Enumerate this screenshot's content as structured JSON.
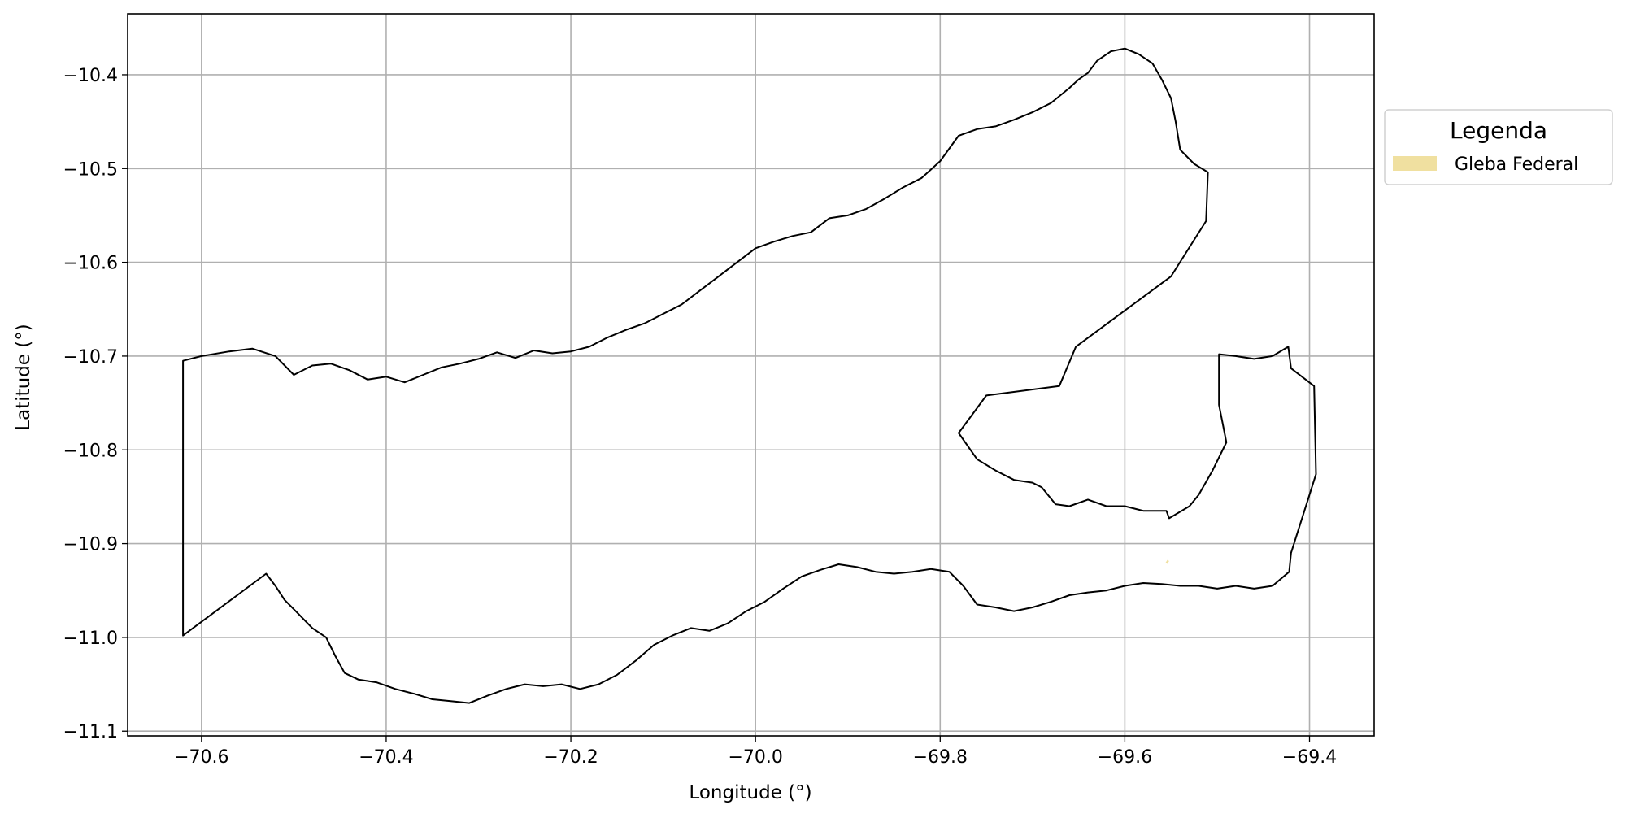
{
  "chart_data": {
    "type": "map",
    "xlabel": "Longitude (°)",
    "ylabel": "Latitude (°)",
    "xlim": [
      -70.68,
      -69.33
    ],
    "ylim": [
      -11.105,
      -10.335
    ],
    "xticks": [
      -70.6,
      -70.4,
      -70.2,
      -70.0,
      -69.8,
      -69.6,
      -69.4
    ],
    "xtick_labels": [
      "−70.6",
      "−70.4",
      "−70.2",
      "−70.0",
      "−69.8",
      "−69.6",
      "−69.4"
    ],
    "yticks": [
      -10.4,
      -10.5,
      -10.6,
      -10.7,
      -10.8,
      -10.9,
      -11.0,
      -11.1
    ],
    "ytick_labels": [
      "−10.4",
      "−10.5",
      "−10.6",
      "−10.7",
      "−10.8",
      "−10.9",
      "−11.0",
      "−11.1"
    ],
    "grid": true,
    "legend": {
      "title": "Legenda",
      "placement": "outside-right-top",
      "entries": [
        {
          "label": "Gleba Federal",
          "color": "#f0e0a0"
        }
      ]
    },
    "outline_color": "#000000",
    "main_outline": [
      [
        -70.62,
        -10.705
      ],
      [
        -70.6,
        -10.7
      ],
      [
        -70.57,
        -10.695
      ],
      [
        -70.545,
        -10.692
      ],
      [
        -70.52,
        -10.7
      ],
      [
        -70.5,
        -10.72
      ],
      [
        -70.48,
        -10.71
      ],
      [
        -70.46,
        -10.708
      ],
      [
        -70.44,
        -10.715
      ],
      [
        -70.42,
        -10.725
      ],
      [
        -70.4,
        -10.722
      ],
      [
        -70.38,
        -10.728
      ],
      [
        -70.36,
        -10.72
      ],
      [
        -70.34,
        -10.712
      ],
      [
        -70.32,
        -10.708
      ],
      [
        -70.3,
        -10.703
      ],
      [
        -70.28,
        -10.696
      ],
      [
        -70.26,
        -10.702
      ],
      [
        -70.24,
        -10.694
      ],
      [
        -70.22,
        -10.697
      ],
      [
        -70.2,
        -10.695
      ],
      [
        -70.18,
        -10.69
      ],
      [
        -70.16,
        -10.68
      ],
      [
        -70.14,
        -10.672
      ],
      [
        -70.12,
        -10.665
      ],
      [
        -70.1,
        -10.655
      ],
      [
        -70.08,
        -10.645
      ],
      [
        -70.06,
        -10.63
      ],
      [
        -70.04,
        -10.615
      ],
      [
        -70.02,
        -10.6
      ],
      [
        -70.0,
        -10.585
      ],
      [
        -69.98,
        -10.578
      ],
      [
        -69.96,
        -10.572
      ],
      [
        -69.94,
        -10.568
      ],
      [
        -69.92,
        -10.553
      ],
      [
        -69.9,
        -10.55
      ],
      [
        -69.88,
        -10.543
      ],
      [
        -69.86,
        -10.532
      ],
      [
        -69.84,
        -10.52
      ],
      [
        -69.82,
        -10.51
      ],
      [
        -69.8,
        -10.492
      ],
      [
        -69.78,
        -10.465
      ],
      [
        -69.76,
        -10.458
      ],
      [
        -69.74,
        -10.455
      ],
      [
        -69.72,
        -10.448
      ],
      [
        -69.7,
        -10.44
      ],
      [
        -69.68,
        -10.43
      ],
      [
        -69.66,
        -10.414
      ],
      [
        -69.65,
        -10.405
      ],
      [
        -69.64,
        -10.398
      ],
      [
        -69.63,
        -10.385
      ],
      [
        -69.615,
        -10.375
      ],
      [
        -69.6,
        -10.372
      ],
      [
        -69.585,
        -10.378
      ],
      [
        -69.57,
        -10.388
      ],
      [
        -69.56,
        -10.405
      ],
      [
        -69.55,
        -10.425
      ],
      [
        -69.545,
        -10.45
      ],
      [
        -69.54,
        -10.48
      ],
      [
        -69.525,
        -10.495
      ],
      [
        -69.51,
        -10.504
      ],
      [
        -69.512,
        -10.556
      ],
      [
        -69.55,
        -10.615
      ],
      [
        -69.653,
        -10.69
      ],
      [
        -69.671,
        -10.732
      ],
      [
        -69.75,
        -10.742
      ],
      [
        -69.78,
        -10.782
      ],
      [
        -69.76,
        -10.81
      ],
      [
        -69.74,
        -10.822
      ],
      [
        -69.72,
        -10.832
      ],
      [
        -69.7,
        -10.835
      ],
      [
        -69.69,
        -10.84
      ],
      [
        -69.675,
        -10.858
      ],
      [
        -69.66,
        -10.86
      ],
      [
        -69.64,
        -10.853
      ],
      [
        -69.62,
        -10.86
      ],
      [
        -69.6,
        -10.86
      ],
      [
        -69.58,
        -10.865
      ],
      [
        -69.555,
        -10.865
      ],
      [
        -69.552,
        -10.873
      ],
      [
        -69.53,
        -10.86
      ],
      [
        -69.52,
        -10.848
      ],
      [
        -69.505,
        -10.822
      ],
      [
        -69.49,
        -10.792
      ],
      [
        -69.498,
        -10.752
      ],
      [
        -69.498,
        -10.698
      ],
      [
        -69.48,
        -10.7
      ],
      [
        -69.46,
        -10.703
      ],
      [
        -69.44,
        -10.7
      ],
      [
        -69.423,
        -10.69
      ],
      [
        -69.42,
        -10.713
      ],
      [
        -69.395,
        -10.732
      ],
      [
        -69.393,
        -10.826
      ],
      [
        -69.42,
        -10.91
      ],
      [
        -69.422,
        -10.93
      ],
      [
        -69.44,
        -10.945
      ],
      [
        -69.46,
        -10.948
      ],
      [
        -69.48,
        -10.945
      ],
      [
        -69.5,
        -10.948
      ],
      [
        -69.52,
        -10.945
      ],
      [
        -69.54,
        -10.945
      ],
      [
        -69.56,
        -10.943
      ],
      [
        -69.58,
        -10.942
      ],
      [
        -69.6,
        -10.945
      ],
      [
        -69.62,
        -10.95
      ],
      [
        -69.64,
        -10.952
      ],
      [
        -69.66,
        -10.955
      ],
      [
        -69.68,
        -10.962
      ],
      [
        -69.7,
        -10.968
      ],
      [
        -69.72,
        -10.972
      ],
      [
        -69.74,
        -10.968
      ],
      [
        -69.76,
        -10.965
      ],
      [
        -69.775,
        -10.945
      ],
      [
        -69.79,
        -10.93
      ],
      [
        -69.81,
        -10.927
      ],
      [
        -69.83,
        -10.93
      ],
      [
        -69.85,
        -10.932
      ],
      [
        -69.87,
        -10.93
      ],
      [
        -69.89,
        -10.925
      ],
      [
        -69.91,
        -10.922
      ],
      [
        -69.93,
        -10.928
      ],
      [
        -69.95,
        -10.935
      ],
      [
        -69.97,
        -10.948
      ],
      [
        -69.99,
        -10.962
      ],
      [
        -70.01,
        -10.972
      ],
      [
        -70.03,
        -10.985
      ],
      [
        -70.05,
        -10.993
      ],
      [
        -70.07,
        -10.99
      ],
      [
        -70.09,
        -10.998
      ],
      [
        -70.11,
        -11.008
      ],
      [
        -70.13,
        -11.025
      ],
      [
        -70.15,
        -11.04
      ],
      [
        -70.17,
        -11.05
      ],
      [
        -70.19,
        -11.055
      ],
      [
        -70.21,
        -11.05
      ],
      [
        -70.23,
        -11.052
      ],
      [
        -70.25,
        -11.05
      ],
      [
        -70.27,
        -11.055
      ],
      [
        -70.29,
        -11.062
      ],
      [
        -70.31,
        -11.07
      ],
      [
        -70.33,
        -11.068
      ],
      [
        -70.35,
        -11.066
      ],
      [
        -70.37,
        -11.06
      ],
      [
        -70.39,
        -11.055
      ],
      [
        -70.41,
        -11.048
      ],
      [
        -70.43,
        -11.045
      ],
      [
        -70.445,
        -11.038
      ],
      [
        -70.455,
        -11.02
      ],
      [
        -70.465,
        -11.0
      ],
      [
        -70.48,
        -10.99
      ],
      [
        -70.495,
        -10.975
      ],
      [
        -70.51,
        -10.96
      ],
      [
        -70.52,
        -10.945
      ],
      [
        -70.53,
        -10.932
      ],
      [
        -70.62,
        -10.998
      ],
      [
        -70.62,
        -10.705
      ]
    ],
    "small_parcel": [
      [
        -69.553,
        -10.918
      ],
      [
        -69.555,
        -10.921
      ]
    ]
  }
}
